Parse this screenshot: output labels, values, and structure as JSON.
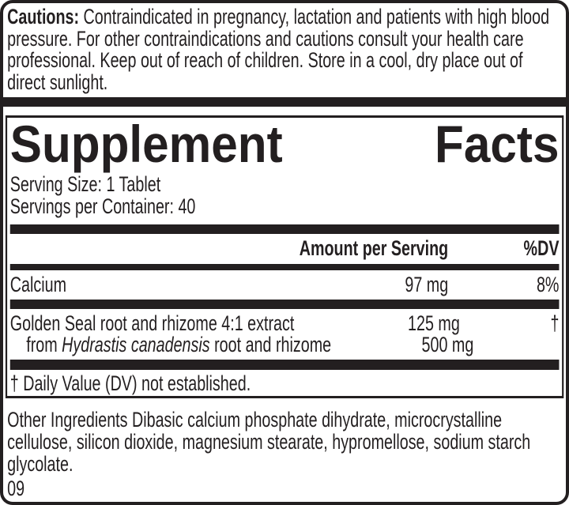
{
  "colors": {
    "ink": "#231f20",
    "background": "#ffffff"
  },
  "cautions": {
    "label": "Cautions:",
    "text": " Contraindicated in pregnancy, lactation and patients with high blood pressure. For other contraindications and cautions consult your health care professional. Keep out of reach of children. Store in a cool, dry place out of direct sunlight."
  },
  "panel": {
    "title": {
      "word1": "Supplement",
      "word2": "Facts"
    },
    "serving_size": "Serving Size: 1 Tablet",
    "servings_per_container": "Servings per Container: 40",
    "columns": {
      "amount": "Amount per Serving",
      "dv": "%DV"
    },
    "rows": [
      {
        "name": "Calcium",
        "amount": "97 mg",
        "dv": "8%"
      },
      {
        "name": "Golden Seal root and rhizome 4:1 extract",
        "amount": "125 mg",
        "dv": "†"
      },
      {
        "name_prefix": "from ",
        "name_italic": "Hydrastis canadensis",
        "name_suffix": " root and rhizome",
        "amount": "500 mg",
        "dv": ""
      }
    ],
    "footnote": "† Daily Value (DV) not established."
  },
  "other_ingredients": "Other Ingredients Dibasic calcium phosphate dihydrate, microcrystalline cellulose, silicon dioxide, magnesium stearate, hypromellose, sodium starch glycolate.",
  "code": "09"
}
